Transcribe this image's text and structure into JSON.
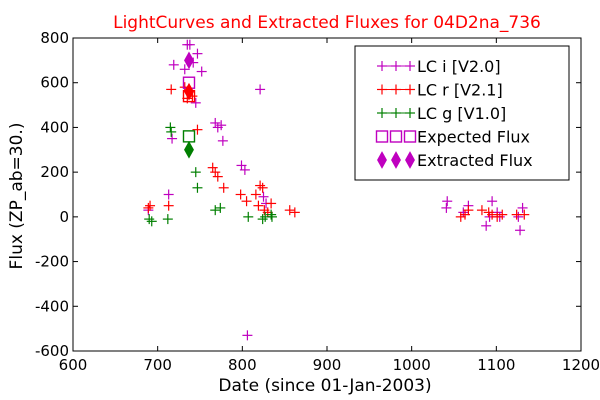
{
  "chart_data": {
    "type": "scatter",
    "title": "LightCurves and Extracted Fluxes for 04D2na_736",
    "xlabel": "Date (since 01-Jan-2003)",
    "ylabel": "Flux (ZP_ab=30.)",
    "xlim": [
      600,
      1200
    ],
    "ylim": [
      -600,
      800
    ],
    "xticks": [
      600,
      700,
      800,
      900,
      1000,
      1100,
      1200
    ],
    "yticks": [
      -600,
      -400,
      -200,
      0,
      200,
      400,
      600,
      800
    ],
    "legend_position": "top-right",
    "colors": {
      "i": "#bf00bf",
      "r": "#ff0000",
      "g": "#007f00",
      "title": "#ff0000"
    },
    "series": [
      {
        "name": "LC i [V2.0]",
        "color": "#bf00bf",
        "marker": "plus",
        "x": [
          689,
          713,
          717,
          719,
          732,
          735,
          738,
          742,
          745,
          747,
          752,
          768,
          771,
          775,
          777,
          799,
          803,
          806,
          821,
          825,
          828,
          1041,
          1042,
          1061,
          1067,
          1088,
          1092,
          1095,
          1101,
          1104,
          1126,
          1128,
          1131
        ],
        "y": [
          30,
          100,
          350,
          680,
          660,
          770,
          770,
          690,
          510,
          730,
          650,
          420,
          400,
          410,
          340,
          230,
          210,
          -530,
          570,
          90,
          60,
          40,
          70,
          20,
          50,
          -40,
          0,
          70,
          20,
          0,
          0,
          -60,
          40
        ]
      },
      {
        "name": "LC r [V2.1]",
        "color": "#ff0000",
        "marker": "plus",
        "x": [
          689,
          691,
          713,
          716,
          732,
          735,
          741,
          747,
          765,
          768,
          771,
          778,
          798,
          805,
          816,
          819,
          821,
          824,
          826,
          830,
          834,
          856,
          862,
          1058,
          1063,
          1067,
          1083,
          1091,
          1095,
          1101,
          1107,
          1124,
          1133
        ],
        "y": [
          40,
          50,
          50,
          570,
          580,
          530,
          540,
          390,
          220,
          200,
          180,
          130,
          100,
          70,
          100,
          50,
          140,
          130,
          30,
          20,
          60,
          30,
          20,
          0,
          10,
          30,
          30,
          20,
          10,
          0,
          10,
          10,
          10
        ],
        "connect_indices": [
          0,
          1
        ]
      },
      {
        "name": "LC g [V1.0]",
        "color": "#007f00",
        "marker": "plus",
        "x": [
          690,
          693,
          712,
          715,
          716,
          745,
          747,
          768,
          774,
          807,
          824,
          827,
          834,
          835
        ],
        "y": [
          -10,
          -20,
          -10,
          400,
          380,
          200,
          130,
          30,
          40,
          0,
          -10,
          0,
          10,
          0
        ]
      },
      {
        "name": "Expected Flux",
        "marker": "open-square",
        "points": [
          {
            "band": "i",
            "x": 737,
            "y": 600
          },
          {
            "band": "r",
            "x": 737,
            "y": 540
          },
          {
            "band": "g",
            "x": 737,
            "y": 360
          }
        ]
      },
      {
        "name": "Extracted Flux",
        "marker": "filled-diamond",
        "points": [
          {
            "band": "i",
            "x": 737,
            "y": 700
          },
          {
            "band": "r",
            "x": 737,
            "y": 560
          },
          {
            "band": "g",
            "x": 737,
            "y": 300
          }
        ]
      }
    ]
  }
}
